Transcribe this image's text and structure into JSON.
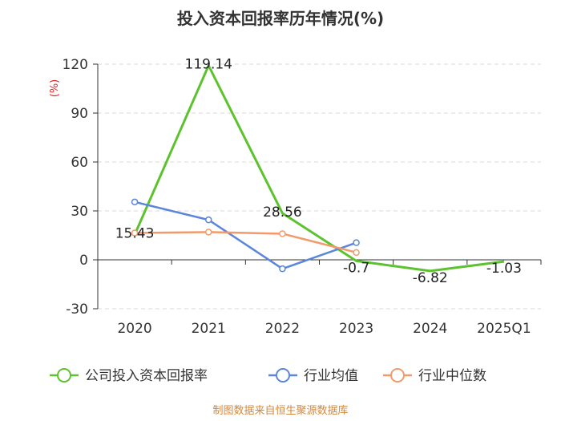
{
  "chart_data": {
    "type": "line",
    "title": "投入资本回报率历年情况(%)",
    "ylabel": "(%)",
    "categories": [
      "2020",
      "2021",
      "2022",
      "2023",
      "2024",
      "2025Q1"
    ],
    "ylim": [
      -30,
      120
    ],
    "yticks": [
      -30,
      0,
      30,
      60,
      90,
      120
    ],
    "series": [
      {
        "name": "公司投入资本回报率",
        "color": "#5cc22e",
        "values": [
          15.43,
          119.14,
          28.56,
          -0.7,
          -6.82,
          -1.03
        ],
        "labels": [
          "15.43",
          "119.14",
          "28.56",
          "-0.7",
          "-6.82",
          "-1.03"
        ]
      },
      {
        "name": "行业均值",
        "color": "#5b86dc",
        "values": [
          35.5,
          24.5,
          -5.5,
          10.5,
          null,
          null
        ]
      },
      {
        "name": "行业中位数",
        "color": "#f39a6b",
        "values": [
          16.5,
          17.0,
          16.0,
          4.5,
          null,
          null
        ]
      }
    ],
    "source": "制图数据来自恒生聚源数据库"
  }
}
